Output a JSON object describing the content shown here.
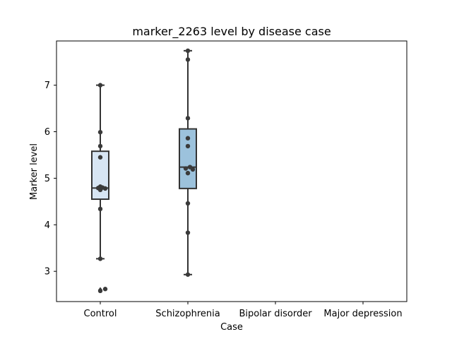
{
  "chart_data": {
    "type": "box",
    "title": "marker_2263 level by disease case",
    "xlabel": "Case",
    "ylabel": "Marker level",
    "ylim": [
      2.35,
      7.95
    ],
    "yticks": [
      3,
      4,
      5,
      6,
      7
    ],
    "grid": false,
    "categories": [
      "Control",
      "Schizophrenia",
      "Bipolar disorder",
      "Major depression"
    ],
    "colors": {
      "Control": "#d7e5f3",
      "Schizophrenia": "#9cc2dc",
      "edge": "#333333",
      "points": "#3a3a3a"
    },
    "boxes": [
      {
        "category": "Control",
        "whisker_low": 3.27,
        "q1": 4.55,
        "median": 4.79,
        "q3": 5.58,
        "whisker_high": 7.0,
        "outliers": [
          2.6
        ],
        "points": [
          2.58,
          2.62,
          3.27,
          4.34,
          4.75,
          4.78,
          4.79,
          4.8,
          4.82,
          5.45,
          5.69,
          5.99,
          7.0
        ]
      },
      {
        "category": "Schizophrenia",
        "whisker_low": 2.93,
        "q1": 4.78,
        "median": 5.24,
        "q3": 6.06,
        "whisker_high": 7.74,
        "outliers": [],
        "points": [
          2.93,
          3.83,
          4.46,
          5.11,
          5.19,
          5.21,
          5.24,
          5.69,
          5.86,
          6.29,
          7.55,
          7.74
        ]
      }
    ]
  }
}
